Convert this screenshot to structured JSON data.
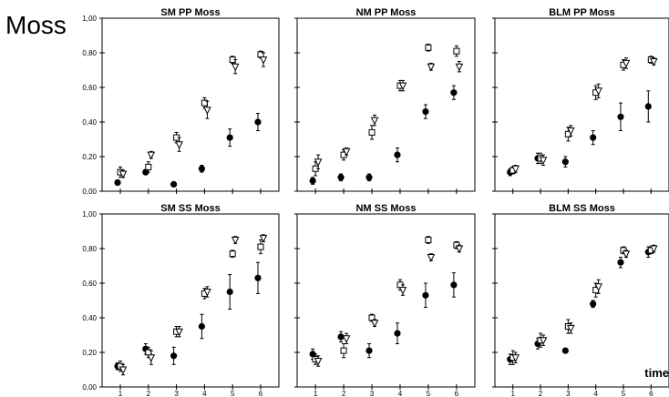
{
  "figure": {
    "title": "Moss",
    "corner_label": "time"
  },
  "chart_data": [
    {
      "type": "scatter",
      "title": "SM PP Moss",
      "x": [
        1,
        2,
        3,
        4,
        5,
        6
      ],
      "ylim": [
        0,
        1.0
      ],
      "yticks": [
        "0,00",
        "0,20",
        "0,40",
        "0,60",
        "0,80",
        "1,00"
      ],
      "xticks": [],
      "series": [
        {
          "marker": "circle",
          "values": [
            0.05,
            0.11,
            0.04,
            0.13,
            0.31,
            0.4
          ],
          "errors": [
            0.015,
            0.015,
            0.01,
            0.02,
            0.05,
            0.05
          ]
        },
        {
          "marker": "square",
          "values": [
            0.11,
            0.14,
            0.31,
            0.51,
            0.76,
            0.79
          ],
          "errors": [
            0.03,
            0.03,
            0.03,
            0.03,
            0.02,
            0.02
          ]
        },
        {
          "marker": "triangle",
          "values": [
            0.1,
            0.21,
            0.27,
            0.47,
            0.72,
            0.76
          ],
          "errors": [
            0.02,
            0.02,
            0.04,
            0.05,
            0.04,
            0.04
          ]
        }
      ]
    },
    {
      "type": "scatter",
      "title": "NM PP Moss",
      "x": [
        1,
        2,
        3,
        4,
        5,
        6
      ],
      "ylim": [
        0,
        1.0
      ],
      "yticks": [],
      "xticks": [],
      "series": [
        {
          "marker": "circle",
          "values": [
            0.06,
            0.08,
            0.08,
            0.21,
            0.46,
            0.57
          ],
          "errors": [
            0.02,
            0.02,
            0.02,
            0.04,
            0.04,
            0.04
          ]
        },
        {
          "marker": "square",
          "values": [
            0.13,
            0.21,
            0.34,
            0.61,
            0.83,
            0.81
          ],
          "errors": [
            0.04,
            0.03,
            0.04,
            0.03,
            0.02,
            0.03
          ]
        },
        {
          "marker": "triangle",
          "values": [
            0.17,
            0.23,
            0.41,
            0.61,
            0.72,
            0.72
          ],
          "errors": [
            0.04,
            0.02,
            0.03,
            0.03,
            0.02,
            0.03
          ]
        }
      ]
    },
    {
      "type": "scatter",
      "title": "BLM PP Moss",
      "x": [
        1,
        2,
        3,
        4,
        5,
        6
      ],
      "ylim": [
        0,
        1.0
      ],
      "yticks": [],
      "xticks": [],
      "series": [
        {
          "marker": "circle",
          "values": [
            0.11,
            0.19,
            0.17,
            0.31,
            0.43,
            0.49
          ],
          "errors": [
            0.02,
            0.03,
            0.03,
            0.04,
            0.08,
            0.09
          ]
        },
        {
          "marker": "square",
          "values": [
            0.12,
            0.19,
            0.33,
            0.57,
            0.73,
            0.76
          ],
          "errors": [
            0.02,
            0.03,
            0.04,
            0.04,
            0.03,
            0.02
          ]
        },
        {
          "marker": "triangle",
          "values": [
            0.13,
            0.18,
            0.35,
            0.58,
            0.74,
            0.75
          ],
          "errors": [
            0.02,
            0.03,
            0.03,
            0.04,
            0.03,
            0.02
          ]
        }
      ]
    },
    {
      "type": "scatter",
      "title": "SM SS Moss",
      "x": [
        1,
        2,
        3,
        4,
        5,
        6
      ],
      "ylim": [
        0,
        1.0
      ],
      "yticks": [
        "0,00",
        "0,20",
        "0,40",
        "0,60",
        "0,80",
        "1,00"
      ],
      "xticks": [
        "1",
        "2",
        "3",
        "4",
        "5",
        "6"
      ],
      "series": [
        {
          "marker": "circle",
          "values": [
            0.12,
            0.22,
            0.18,
            0.35,
            0.55,
            0.63
          ],
          "errors": [
            0.02,
            0.03,
            0.05,
            0.07,
            0.1,
            0.09
          ]
        },
        {
          "marker": "square",
          "values": [
            0.12,
            0.2,
            0.32,
            0.54,
            0.77,
            0.81
          ],
          "errors": [
            0.03,
            0.03,
            0.03,
            0.03,
            0.02,
            0.04
          ]
        },
        {
          "marker": "triangle",
          "values": [
            0.1,
            0.17,
            0.32,
            0.55,
            0.85,
            0.86
          ],
          "errors": [
            0.03,
            0.04,
            0.03,
            0.03,
            0.02,
            0.02
          ]
        }
      ]
    },
    {
      "type": "scatter",
      "title": "NM SS Moss",
      "x": [
        1,
        2,
        3,
        4,
        5,
        6
      ],
      "ylim": [
        0,
        1.0
      ],
      "yticks": [],
      "xticks": [
        "1",
        "2",
        "3",
        "4",
        "5",
        "6"
      ],
      "series": [
        {
          "marker": "circle",
          "values": [
            0.19,
            0.29,
            0.21,
            0.31,
            0.53,
            0.59
          ],
          "errors": [
            0.03,
            0.03,
            0.04,
            0.06,
            0.07,
            0.07
          ]
        },
        {
          "marker": "square",
          "values": [
            0.16,
            0.21,
            0.4,
            0.59,
            0.85,
            0.82
          ],
          "errors": [
            0.03,
            0.04,
            0.02,
            0.03,
            0.02,
            0.02
          ]
        },
        {
          "marker": "triangle",
          "values": [
            0.15,
            0.28,
            0.37,
            0.56,
            0.75,
            0.8
          ],
          "errors": [
            0.03,
            0.03,
            0.02,
            0.03,
            0.02,
            0.02
          ]
        }
      ]
    },
    {
      "type": "scatter",
      "title": "BLM SS Moss",
      "x": [
        1,
        2,
        3,
        4,
        5,
        6
      ],
      "ylim": [
        0,
        1.0
      ],
      "yticks": [],
      "xticks": [
        "1",
        "2",
        "3",
        "4",
        "5",
        "6"
      ],
      "series": [
        {
          "marker": "circle",
          "values": [
            0.16,
            0.25,
            0.21,
            0.48,
            0.72,
            0.78
          ],
          "errors": [
            0.03,
            0.03,
            0.01,
            0.02,
            0.03,
            0.03
          ]
        },
        {
          "marker": "square",
          "values": [
            0.17,
            0.27,
            0.35,
            0.56,
            0.79,
            0.79
          ],
          "errors": [
            0.04,
            0.04,
            0.04,
            0.04,
            0.02,
            0.02
          ]
        },
        {
          "marker": "triangle",
          "values": [
            0.17,
            0.27,
            0.34,
            0.58,
            0.77,
            0.8
          ],
          "errors": [
            0.03,
            0.03,
            0.03,
            0.04,
            0.02,
            0.02
          ]
        }
      ]
    }
  ]
}
